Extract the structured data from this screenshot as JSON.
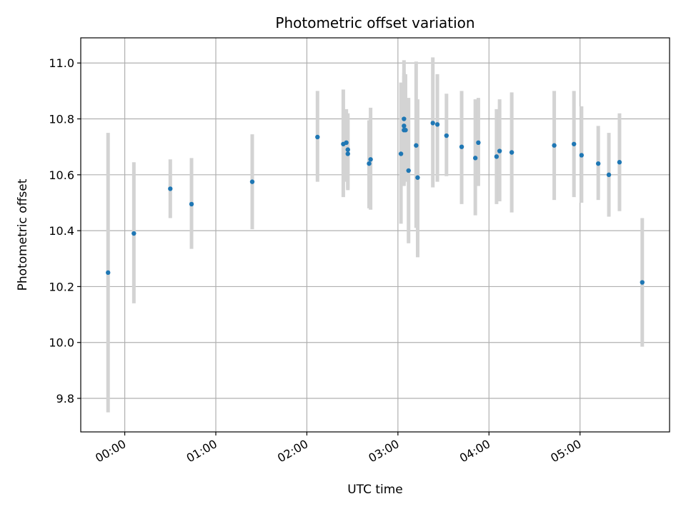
{
  "chart_data": {
    "type": "scatter",
    "title": "Photometric offset variation",
    "xlabel": "UTC time",
    "ylabel": "Photometric offset",
    "x_unit": "UTC time (HH:MM)",
    "xlim": [
      "23:31",
      "05:59"
    ],
    "ylim": [
      9.68,
      11.09
    ],
    "x_ticks": [
      "00:00",
      "01:00",
      "02:00",
      "03:00",
      "04:00",
      "05:00"
    ],
    "y_ticks": [
      "9.8",
      "10.0",
      "10.2",
      "10.4",
      "10.6",
      "10.8",
      "11.0"
    ],
    "grid": true,
    "legend": "none",
    "colors": {
      "point": "#1f77b4",
      "errorbar": "#d3d3d3",
      "grid": "#b0b0b0"
    },
    "points": [
      {
        "x": "23:49",
        "y": 10.25,
        "low": 9.75,
        "high": 10.75
      },
      {
        "x": "00:06",
        "y": 10.39,
        "low": 10.14,
        "high": 10.645
      },
      {
        "x": "00:30",
        "y": 10.55,
        "low": 10.445,
        "high": 10.655
      },
      {
        "x": "00:44",
        "y": 10.495,
        "low": 10.335,
        "high": 10.66
      },
      {
        "x": "01:24",
        "y": 10.575,
        "low": 10.405,
        "high": 10.745
      },
      {
        "x": "02:07",
        "y": 10.735,
        "low": 10.575,
        "high": 10.9
      },
      {
        "x": "02:24",
        "y": 10.71,
        "low": 10.52,
        "high": 10.905
      },
      {
        "x": "02:26",
        "y": 10.715,
        "low": 10.575,
        "high": 10.835
      },
      {
        "x": "02:27",
        "y": 10.69,
        "low": 10.545,
        "high": 10.82
      },
      {
        "x": "02:27",
        "y": 10.675,
        "low": 10.55,
        "high": 10.81
      },
      {
        "x": "02:41",
        "y": 10.64,
        "low": 10.48,
        "high": 10.795
      },
      {
        "x": "02:42",
        "y": 10.655,
        "low": 10.475,
        "high": 10.84
      },
      {
        "x": "03:02",
        "y": 10.675,
        "low": 10.425,
        "high": 10.93
      },
      {
        "x": "03:04",
        "y": 10.8,
        "low": 10.595,
        "high": 11.01
      },
      {
        "x": "03:04",
        "y": 10.775,
        "low": 10.56,
        "high": 10.965
      },
      {
        "x": "03:04",
        "y": 10.76,
        "low": 10.57,
        "high": 10.955
      },
      {
        "x": "03:05",
        "y": 10.76,
        "low": 10.575,
        "high": 10.96
      },
      {
        "x": "03:07",
        "y": 10.615,
        "low": 10.355,
        "high": 10.875
      },
      {
        "x": "03:12",
        "y": 10.705,
        "low": 10.41,
        "high": 11.005
      },
      {
        "x": "03:13",
        "y": 10.59,
        "low": 10.305,
        "high": 10.87
      },
      {
        "x": "03:23",
        "y": 10.785,
        "low": 10.555,
        "high": 11.02
      },
      {
        "x": "03:26",
        "y": 10.78,
        "low": 10.575,
        "high": 10.96
      },
      {
        "x": "03:32",
        "y": 10.74,
        "low": 10.595,
        "high": 10.89
      },
      {
        "x": "03:42",
        "y": 10.7,
        "low": 10.495,
        "high": 10.9
      },
      {
        "x": "03:51",
        "y": 10.66,
        "low": 10.455,
        "high": 10.87
      },
      {
        "x": "03:53",
        "y": 10.715,
        "low": 10.56,
        "high": 10.875
      },
      {
        "x": "04:05",
        "y": 10.665,
        "low": 10.495,
        "high": 10.835
      },
      {
        "x": "04:07",
        "y": 10.685,
        "low": 10.505,
        "high": 10.87
      },
      {
        "x": "04:15",
        "y": 10.68,
        "low": 10.465,
        "high": 10.895
      },
      {
        "x": "04:43",
        "y": 10.705,
        "low": 10.51,
        "high": 10.9
      },
      {
        "x": "04:56",
        "y": 10.71,
        "low": 10.52,
        "high": 10.9
      },
      {
        "x": "05:01",
        "y": 10.67,
        "low": 10.5,
        "high": 10.845
      },
      {
        "x": "05:12",
        "y": 10.64,
        "low": 10.51,
        "high": 10.775
      },
      {
        "x": "05:19",
        "y": 10.6,
        "low": 10.45,
        "high": 10.75
      },
      {
        "x": "05:26",
        "y": 10.645,
        "low": 10.47,
        "high": 10.82
      },
      {
        "x": "05:41",
        "y": 10.215,
        "low": 9.985,
        "high": 10.445
      }
    ]
  }
}
